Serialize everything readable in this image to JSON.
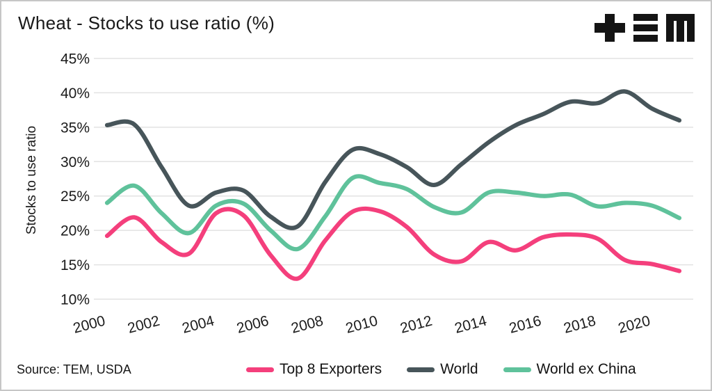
{
  "header": {
    "title": "Wheat - Stocks to use ratio (%)",
    "logo_alt": "TEM"
  },
  "footer": {
    "source": "Source: TEM, USDA"
  },
  "chart_data": {
    "type": "line",
    "title": "Wheat - Stocks to use ratio (%)",
    "xlabel": "",
    "ylabel": "Stocks to use ratio",
    "ylim": [
      10,
      45
    ],
    "grid": "horizontal",
    "legend_position": "bottom",
    "background": "#ffffff",
    "gridline_color": "#e2e2e2",
    "x": [
      2000,
      2001,
      2002,
      2003,
      2004,
      2005,
      2006,
      2007,
      2008,
      2009,
      2010,
      2011,
      2012,
      2013,
      2014,
      2015,
      2016,
      2017,
      2018,
      2019,
      2020,
      2021
    ],
    "x_ticks": [
      2000,
      2002,
      2004,
      2006,
      2008,
      2010,
      2012,
      2014,
      2016,
      2018,
      2020
    ],
    "x_tick_labels": [
      "2000",
      "2002",
      "2004",
      "2006",
      "2008",
      "2010",
      "2012",
      "2014",
      "2016",
      "2018",
      "2020"
    ],
    "y_ticks": [
      10,
      15,
      20,
      25,
      30,
      35,
      40,
      45
    ],
    "y_tick_labels": [
      "10%",
      "15%",
      "20%",
      "25%",
      "30%",
      "35%",
      "40%",
      "45%"
    ],
    "series": [
      {
        "name": "Top 8 Exporters",
        "color": "#F43F7C",
        "values": [
          19.2,
          21.9,
          18.3,
          16.6,
          22.5,
          22.2,
          16.4,
          13.0,
          18.5,
          22.7,
          22.8,
          20.5,
          16.5,
          15.5,
          18.3,
          17.1,
          19.0,
          19.4,
          18.8,
          15.7,
          15.1,
          14.1
        ]
      },
      {
        "name": "World",
        "color": "#47555A",
        "values": [
          35.3,
          35.4,
          29.2,
          23.6,
          25.5,
          25.8,
          22.0,
          20.6,
          27.0,
          31.7,
          31.1,
          29.2,
          26.6,
          29.6,
          32.8,
          35.3,
          36.9,
          38.7,
          38.5,
          40.2,
          37.7,
          36.0
        ]
      },
      {
        "name": "World ex China",
        "color": "#5FC29B",
        "values": [
          24.0,
          26.5,
          22.5,
          19.6,
          23.6,
          23.9,
          20.0,
          17.3,
          22.0,
          27.6,
          26.9,
          26.0,
          23.4,
          22.6,
          25.5,
          25.5,
          25.0,
          25.2,
          23.5,
          24.0,
          23.6,
          21.8
        ]
      }
    ]
  }
}
